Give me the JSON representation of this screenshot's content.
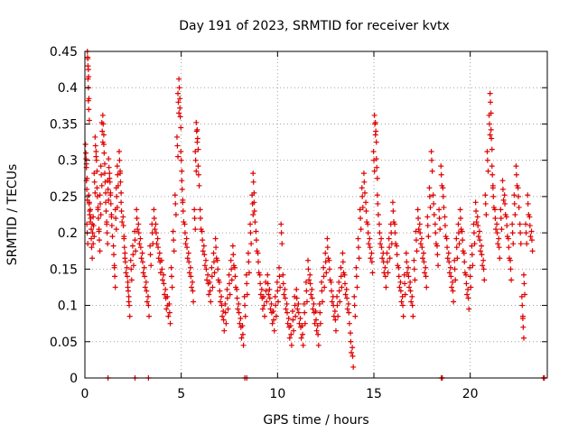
{
  "chart_data": {
    "type": "scatter",
    "title": "Day 191 of 2023, SRMTID for receiver kvtx",
    "xlabel": "GPS time / hours",
    "ylabel": "SRMTID / TECUs",
    "xlim": [
      0,
      24
    ],
    "ylim": [
      0,
      0.45
    ],
    "xticks": [
      "0",
      "5",
      "10",
      "15",
      "20"
    ],
    "xtick_values": [
      0,
      5,
      10,
      15,
      20
    ],
    "yticks": [
      "0",
      "0.05",
      "0.1",
      "0.15",
      "0.2",
      "0.25",
      "0.3",
      "0.35",
      "0.4",
      "0.45"
    ],
    "ytick_values": [
      0,
      0.05,
      0.1,
      0.15,
      0.2,
      0.25,
      0.3,
      0.35,
      0.4,
      0.45
    ],
    "grid": true,
    "marker": "+",
    "color": "#e00000",
    "series": [
      {
        "name": "SRMTID",
        "points": [
          [
            0.05,
            0.31
          ],
          [
            0.08,
            0.29
          ],
          [
            0.1,
            0.26
          ],
          [
            0.12,
            0.2
          ],
          [
            0.15,
            0.44
          ],
          [
            0.16,
            0.43
          ],
          [
            0.18,
            0.4
          ],
          [
            0.2,
            0.37
          ],
          [
            0.22,
            0.24
          ],
          [
            0.25,
            0.23
          ],
          [
            0.3,
            0.22
          ],
          [
            0.35,
            0.18
          ],
          [
            0.4,
            0.2
          ],
          [
            0.45,
            0.21
          ],
          [
            0.5,
            0.27
          ],
          [
            0.55,
            0.32
          ],
          [
            0.6,
            0.3
          ],
          [
            0.65,
            0.25
          ],
          [
            0.7,
            0.22
          ],
          [
            0.75,
            0.19
          ],
          [
            0.8,
            0.24
          ],
          [
            0.85,
            0.28
          ],
          [
            0.9,
            0.34
          ],
          [
            0.95,
            0.35
          ],
          [
            1.0,
            0.31
          ],
          [
            1.05,
            0.27
          ],
          [
            1.1,
            0.23
          ],
          [
            1.15,
            0.2
          ],
          [
            1.2,
            0.26
          ],
          [
            1.25,
            0.29
          ],
          [
            1.3,
            0.27
          ],
          [
            1.35,
            0.24
          ],
          [
            1.4,
            0.21
          ],
          [
            1.5,
            0.17
          ],
          [
            1.55,
            0.14
          ],
          [
            1.6,
            0.22
          ],
          [
            1.65,
            0.25
          ],
          [
            1.7,
            0.28
          ],
          [
            1.8,
            0.3
          ],
          [
            1.85,
            0.27
          ],
          [
            1.9,
            0.23
          ],
          [
            2.0,
            0.21
          ],
          [
            2.05,
            0.18
          ],
          [
            2.1,
            0.16
          ],
          [
            2.2,
            0.14
          ],
          [
            2.25,
            0.12
          ],
          [
            2.3,
            0.1
          ],
          [
            2.4,
            0.15
          ],
          [
            2.5,
            0.17
          ],
          [
            2.6,
            0.19
          ],
          [
            2.7,
            0.22
          ],
          [
            2.8,
            0.2
          ],
          [
            2.9,
            0.18
          ],
          [
            3.0,
            0.16
          ],
          [
            3.1,
            0.14
          ],
          [
            3.2,
            0.12
          ],
          [
            3.3,
            0.1
          ],
          [
            3.4,
            0.17
          ],
          [
            3.5,
            0.2
          ],
          [
            3.6,
            0.22
          ],
          [
            3.7,
            0.2
          ],
          [
            3.8,
            0.18
          ],
          [
            3.9,
            0.16
          ],
          [
            4.0,
            0.15
          ],
          [
            4.1,
            0.13
          ],
          [
            4.2,
            0.11
          ],
          [
            4.3,
            0.1
          ],
          [
            4.4,
            0.09
          ],
          [
            4.5,
            0.14
          ],
          [
            4.6,
            0.19
          ],
          [
            4.7,
            0.24
          ],
          [
            4.8,
            0.32
          ],
          [
            4.85,
            0.38
          ],
          [
            4.9,
            0.4
          ],
          [
            4.95,
            0.36
          ],
          [
            5.0,
            0.3
          ],
          [
            5.05,
            0.26
          ],
          [
            5.1,
            0.23
          ],
          [
            5.2,
            0.2
          ],
          [
            5.3,
            0.18
          ],
          [
            5.4,
            0.16
          ],
          [
            5.5,
            0.14
          ],
          [
            5.6,
            0.12
          ],
          [
            5.7,
            0.22
          ],
          [
            5.75,
            0.3
          ],
          [
            5.8,
            0.34
          ],
          [
            5.85,
            0.33
          ],
          [
            5.9,
            0.28
          ],
          [
            6.0,
            0.22
          ],
          [
            6.1,
            0.19
          ],
          [
            6.2,
            0.17
          ],
          [
            6.3,
            0.15
          ],
          [
            6.4,
            0.13
          ],
          [
            6.5,
            0.12
          ],
          [
            6.6,
            0.14
          ],
          [
            6.7,
            0.16
          ],
          [
            6.8,
            0.18
          ],
          [
            6.9,
            0.15
          ],
          [
            7.0,
            0.12
          ],
          [
            7.1,
            0.1
          ],
          [
            7.2,
            0.08
          ],
          [
            7.3,
            0.09
          ],
          [
            7.4,
            0.11
          ],
          [
            7.5,
            0.13
          ],
          [
            7.6,
            0.15
          ],
          [
            7.7,
            0.17
          ],
          [
            7.8,
            0.14
          ],
          [
            7.9,
            0.11
          ],
          [
            8.0,
            0.09
          ],
          [
            8.1,
            0.07
          ],
          [
            8.2,
            0.06
          ],
          [
            8.3,
            0.1
          ],
          [
            8.4,
            0.13
          ],
          [
            8.5,
            0.16
          ],
          [
            8.6,
            0.2
          ],
          [
            8.7,
            0.24
          ],
          [
            8.75,
            0.27
          ],
          [
            8.8,
            0.23
          ],
          [
            8.9,
            0.19
          ],
          [
            9.0,
            0.16
          ],
          [
            9.1,
            0.13
          ],
          [
            9.2,
            0.11
          ],
          [
            9.3,
            0.1
          ],
          [
            9.4,
            0.12
          ],
          [
            9.5,
            0.13
          ],
          [
            9.6,
            0.11
          ],
          [
            9.7,
            0.09
          ],
          [
            9.8,
            0.08
          ],
          [
            9.9,
            0.1
          ],
          [
            10.0,
            0.12
          ],
          [
            10.1,
            0.14
          ],
          [
            10.2,
            0.2
          ],
          [
            10.3,
            0.13
          ],
          [
            10.4,
            0.11
          ],
          [
            10.5,
            0.09
          ],
          [
            10.6,
            0.07
          ],
          [
            10.7,
            0.06
          ],
          [
            10.8,
            0.08
          ],
          [
            10.9,
            0.1
          ],
          [
            11.0,
            0.11
          ],
          [
            11.1,
            0.09
          ],
          [
            11.2,
            0.07
          ],
          [
            11.3,
            0.06
          ],
          [
            11.4,
            0.09
          ],
          [
            11.5,
            0.12
          ],
          [
            11.6,
            0.15
          ],
          [
            11.7,
            0.13
          ],
          [
            11.8,
            0.11
          ],
          [
            11.9,
            0.09
          ],
          [
            12.0,
            0.08
          ],
          [
            12.1,
            0.06
          ],
          [
            12.2,
            0.09
          ],
          [
            12.3,
            0.12
          ],
          [
            12.4,
            0.14
          ],
          [
            12.5,
            0.16
          ],
          [
            12.6,
            0.18
          ],
          [
            12.7,
            0.15
          ],
          [
            12.8,
            0.12
          ],
          [
            12.9,
            0.1
          ],
          [
            13.0,
            0.08
          ],
          [
            13.1,
            0.1
          ],
          [
            13.2,
            0.12
          ],
          [
            13.3,
            0.14
          ],
          [
            13.4,
            0.16
          ],
          [
            13.5,
            0.13
          ],
          [
            13.6,
            0.11
          ],
          [
            13.7,
            0.09
          ],
          [
            13.8,
            0.05
          ],
          [
            13.9,
            0.03
          ],
          [
            14.0,
            0.1
          ],
          [
            14.1,
            0.14
          ],
          [
            14.2,
            0.18
          ],
          [
            14.3,
            0.22
          ],
          [
            14.4,
            0.25
          ],
          [
            14.5,
            0.27
          ],
          [
            14.6,
            0.23
          ],
          [
            14.7,
            0.2
          ],
          [
            14.8,
            0.18
          ],
          [
            14.9,
            0.16
          ],
          [
            15.0,
            0.3
          ],
          [
            15.05,
            0.35
          ],
          [
            15.1,
            0.34
          ],
          [
            15.15,
            0.29
          ],
          [
            15.2,
            0.24
          ],
          [
            15.3,
            0.2
          ],
          [
            15.4,
            0.18
          ],
          [
            15.5,
            0.16
          ],
          [
            15.6,
            0.14
          ],
          [
            15.7,
            0.16
          ],
          [
            15.8,
            0.18
          ],
          [
            15.9,
            0.2
          ],
          [
            16.0,
            0.23
          ],
          [
            16.1,
            0.2
          ],
          [
            16.2,
            0.17
          ],
          [
            16.3,
            0.14
          ],
          [
            16.4,
            0.12
          ],
          [
            16.5,
            0.1
          ],
          [
            16.6,
            0.13
          ],
          [
            16.7,
            0.16
          ],
          [
            16.8,
            0.14
          ],
          [
            16.9,
            0.12
          ],
          [
            17.0,
            0.1
          ],
          [
            17.1,
            0.15
          ],
          [
            17.2,
            0.19
          ],
          [
            17.3,
            0.22
          ],
          [
            17.4,
            0.2
          ],
          [
            17.5,
            0.18
          ],
          [
            17.6,
            0.16
          ],
          [
            17.7,
            0.14
          ],
          [
            17.8,
            0.21
          ],
          [
            17.9,
            0.25
          ],
          [
            18.0,
            0.3
          ],
          [
            18.1,
            0.24
          ],
          [
            18.2,
            0.2
          ],
          [
            18.3,
            0.17
          ],
          [
            18.4,
            0.22
          ],
          [
            18.5,
            0.28
          ],
          [
            18.6,
            0.25
          ],
          [
            18.7,
            0.21
          ],
          [
            18.8,
            0.18
          ],
          [
            18.9,
            0.16
          ],
          [
            19.0,
            0.14
          ],
          [
            19.1,
            0.12
          ],
          [
            19.2,
            0.15
          ],
          [
            19.3,
            0.18
          ],
          [
            19.4,
            0.2
          ],
          [
            19.5,
            0.22
          ],
          [
            19.6,
            0.19
          ],
          [
            19.7,
            0.16
          ],
          [
            19.8,
            0.13
          ],
          [
            19.9,
            0.11
          ],
          [
            20.0,
            0.14
          ],
          [
            20.1,
            0.17
          ],
          [
            20.2,
            0.2
          ],
          [
            20.3,
            0.23
          ],
          [
            20.4,
            0.21
          ],
          [
            20.5,
            0.19
          ],
          [
            20.6,
            0.17
          ],
          [
            20.7,
            0.15
          ],
          [
            20.8,
            0.24
          ],
          [
            20.9,
            0.3
          ],
          [
            21.0,
            0.35
          ],
          [
            21.05,
            0.38
          ],
          [
            21.1,
            0.33
          ],
          [
            21.15,
            0.28
          ],
          [
            21.2,
            0.25
          ],
          [
            21.3,
            0.22
          ],
          [
            21.4,
            0.2
          ],
          [
            21.5,
            0.18
          ],
          [
            21.6,
            0.22
          ],
          [
            21.7,
            0.26
          ],
          [
            21.8,
            0.24
          ],
          [
            21.9,
            0.21
          ],
          [
            22.0,
            0.18
          ],
          [
            22.1,
            0.15
          ],
          [
            22.2,
            0.2
          ],
          [
            22.3,
            0.24
          ],
          [
            22.4,
            0.28
          ],
          [
            22.5,
            0.25
          ],
          [
            22.6,
            0.2
          ],
          [
            22.7,
            0.1
          ],
          [
            22.75,
            0.07
          ],
          [
            22.8,
            0.13
          ],
          [
            22.9,
            0.2
          ],
          [
            23.0,
            0.24
          ],
          [
            23.1,
            0.21
          ],
          [
            23.2,
            0.19
          ]
        ]
      }
    ],
    "zero_points_x": [
      1.2,
      2.6,
      3.3,
      8.3,
      8.4,
      18.5,
      18.55,
      23.8,
      23.85
    ]
  }
}
